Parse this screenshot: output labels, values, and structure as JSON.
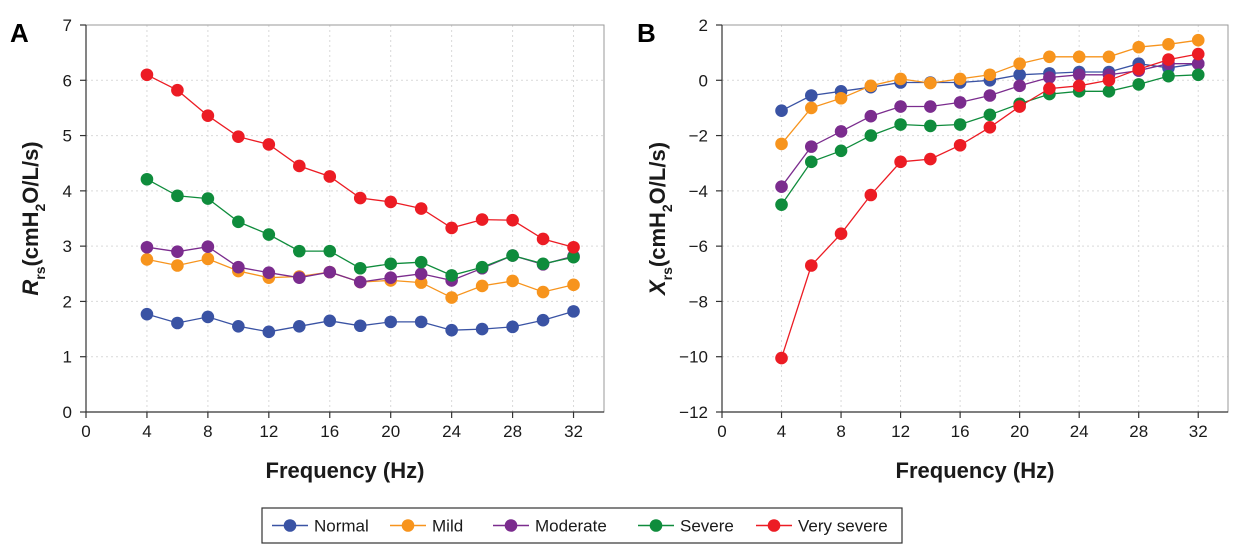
{
  "chart_data": [
    {
      "panel": "A",
      "type": "line",
      "xlabel": "Frequency (Hz)",
      "ylabel": {
        "main": "R",
        "sub": "rs",
        "rest_pre": "(cmH",
        "rest_sub": "2",
        "rest_post": "O/L/s)"
      },
      "xlim": [
        0,
        34
      ],
      "ylim": [
        0,
        7
      ],
      "x_ticks": [
        0,
        4,
        8,
        12,
        16,
        20,
        24,
        28,
        32
      ],
      "y_ticks": [
        0,
        1,
        2,
        3,
        4,
        5,
        6,
        7
      ],
      "grid": true,
      "x": [
        4,
        6,
        8,
        10,
        12,
        14,
        16,
        18,
        20,
        22,
        24,
        26,
        28,
        30,
        32
      ],
      "series": [
        {
          "name": "Normal",
          "values": [
            1.77,
            1.61,
            1.72,
            1.55,
            1.45,
            1.55,
            1.65,
            1.56,
            1.63,
            1.63,
            1.48,
            1.5,
            1.54,
            1.66,
            1.82
          ]
        },
        {
          "name": "Mild",
          "values": [
            2.76,
            2.65,
            2.77,
            2.55,
            2.43,
            2.45,
            2.53,
            2.35,
            2.38,
            2.34,
            2.07,
            2.28,
            2.37,
            2.17,
            2.3
          ]
        },
        {
          "name": "Moderate",
          "values": [
            2.98,
            2.9,
            2.99,
            2.62,
            2.52,
            2.43,
            2.53,
            2.35,
            2.43,
            2.5,
            2.38,
            2.6,
            2.83,
            2.67,
            2.82
          ]
        },
        {
          "name": "Severe",
          "values": [
            4.21,
            3.91,
            3.86,
            3.44,
            3.21,
            2.91,
            2.91,
            2.6,
            2.68,
            2.71,
            2.47,
            2.62,
            2.83,
            2.68,
            2.8
          ]
        },
        {
          "name": "Very severe",
          "values": [
            6.1,
            5.82,
            5.36,
            4.98,
            4.84,
            4.45,
            4.26,
            3.87,
            3.8,
            3.68,
            3.33,
            3.48,
            3.47,
            3.13,
            2.98
          ]
        }
      ]
    },
    {
      "panel": "B",
      "type": "line",
      "xlabel": "Frequency (Hz)",
      "ylabel": {
        "main": "X",
        "sub": "rs",
        "rest_pre": "(cmH",
        "rest_sub": "2",
        "rest_post": "O/L/s)"
      },
      "xlim": [
        0,
        34
      ],
      "ylim": [
        -12,
        2
      ],
      "x_ticks": [
        0,
        4,
        8,
        12,
        16,
        20,
        24,
        28,
        32
      ],
      "y_ticks": [
        -12,
        -10,
        -8,
        -6,
        -4,
        -2,
        0,
        2
      ],
      "y_tick_labels": [
        "−12",
        "−10",
        "−8",
        "−6",
        "−4",
        "−2",
        "0",
        "2"
      ],
      "grid": true,
      "x": [
        4,
        6,
        8,
        10,
        12,
        14,
        16,
        18,
        20,
        22,
        24,
        26,
        28,
        30,
        32
      ],
      "series": [
        {
          "name": "Normal",
          "values": [
            -1.1,
            -0.55,
            -0.4,
            -0.25,
            -0.08,
            -0.08,
            -0.08,
            0.0,
            0.2,
            0.25,
            0.3,
            0.3,
            0.6,
            0.45,
            0.6
          ]
        },
        {
          "name": "Mild",
          "values": [
            -2.3,
            -1.0,
            -0.65,
            -0.2,
            0.05,
            -0.1,
            0.05,
            0.2,
            0.6,
            0.85,
            0.85,
            0.85,
            1.2,
            1.3,
            1.45
          ]
        },
        {
          "name": "Moderate",
          "values": [
            -3.85,
            -2.4,
            -1.85,
            -1.3,
            -0.95,
            -0.95,
            -0.8,
            -0.55,
            -0.2,
            0.1,
            0.2,
            0.2,
            0.35,
            0.6,
            0.6
          ]
        },
        {
          "name": "Severe",
          "values": [
            -4.5,
            -2.95,
            -2.55,
            -2.0,
            -1.6,
            -1.65,
            -1.6,
            -1.25,
            -0.85,
            -0.5,
            -0.4,
            -0.4,
            -0.15,
            0.15,
            0.2
          ]
        },
        {
          "name": "Very severe",
          "values": [
            -10.05,
            -6.7,
            -5.55,
            -4.15,
            -2.95,
            -2.85,
            -2.35,
            -1.7,
            -0.95,
            -0.3,
            -0.2,
            0.0,
            0.4,
            0.75,
            0.95
          ]
        }
      ]
    }
  ],
  "legend": {
    "placement": "bottom-center",
    "entries": [
      "Normal",
      "Mild",
      "Moderate",
      "Severe",
      "Very severe"
    ]
  },
  "colors": {
    "Normal": "#3a53a4",
    "Mild": "#f7941d",
    "Moderate": "#7b2c8e",
    "Severe": "#0f8c3c",
    "Very severe": "#ec1c24"
  }
}
